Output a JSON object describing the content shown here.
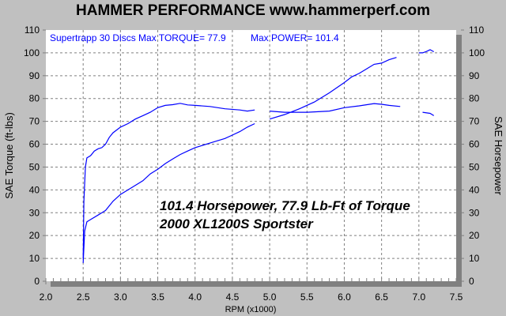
{
  "chart_data": {
    "type": "line",
    "title": "HAMMER PERFORMANCE www.hammerperf.com",
    "xlabel": "RPM (x1000)",
    "ylabel": "SAE Torque (ft-lbs)",
    "ylabel_right": "SAE Horsepower",
    "xlim": [
      2.0,
      7.5
    ],
    "ylim": [
      0,
      110
    ],
    "xticks": [
      "2.0",
      "2.5",
      "3.0",
      "3.5",
      "4.0",
      "4.5",
      "5.0",
      "5.5",
      "6.0",
      "6.5",
      "7.0",
      "7.5"
    ],
    "yticks": [
      "0",
      "10",
      "20",
      "30",
      "40",
      "50",
      "60",
      "70",
      "80",
      "90",
      "100",
      "110"
    ],
    "grid": true,
    "annotations": {
      "header_left": "Supertrapp 30 Discs  Max TORQUE= 77.9",
      "header_right": "Max POWER= 101.4",
      "line1": "101.4 Horsepower, 77.9 Lb-Ft of Torque",
      "line2": "2000 XL1200S Sportster"
    },
    "colors": {
      "line": "#0000ff",
      "background": "#c0c0c0",
      "plot": "#ffffff",
      "shadow": "#808080"
    },
    "series": [
      {
        "segments": [
          {
            "x": [
              2.5,
              2.51,
              2.53,
              2.55,
              2.6,
              2.65,
              2.7,
              2.75,
              2.8,
              2.85,
              2.9,
              3.0,
              3.1,
              3.2,
              3.3,
              3.4,
              3.5,
              3.6,
              3.7,
              3.8,
              3.9,
              4.0,
              4.2,
              4.4,
              4.6,
              4.7,
              4.8
            ],
            "y": [
              10,
              35,
              50,
              54,
              55,
              57,
              58,
              58.5,
              60,
              63,
              65,
              67.5,
              69,
              71,
              72.5,
              74,
              76,
              77,
              77.3,
              77.9,
              77.2,
              77,
              76.5,
              75.5,
              75,
              74.5,
              75
            ]
          },
          {
            "x": [
              5.0,
              5.2,
              5.5,
              5.8,
              6.0,
              6.2,
              6.4,
              6.5,
              6.6,
              6.75
            ],
            "y": [
              74.5,
              74,
              74,
              74.5,
              76,
              76.8,
              77.8,
              77.5,
              77,
              76.5
            ]
          },
          {
            "x": [
              7.05,
              7.15,
              7.2
            ],
            "y": [
              74,
              73.5,
              72.5
            ]
          }
        ]
      },
      {
        "segments": [
          {
            "x": [
              2.5,
              2.52,
              2.55,
              2.6,
              2.7,
              2.8,
              2.9,
              3.0,
              3.1,
              3.2,
              3.3,
              3.4,
              3.5,
              3.6,
              3.7,
              3.8,
              3.9,
              4.0,
              4.1,
              4.2,
              4.3,
              4.4,
              4.5,
              4.6,
              4.7,
              4.8
            ],
            "y": [
              8,
              22,
              26,
              27,
              29,
              31,
              35,
              38,
              40,
              42,
              44,
              47,
              49,
              51.5,
              53.5,
              55.5,
              57,
              58.5,
              59.5,
              60.5,
              61.5,
              62.5,
              64,
              65.5,
              67.5,
              69
            ]
          },
          {
            "x": [
              5.0,
              5.2,
              5.4,
              5.6,
              5.8,
              6.0,
              6.1,
              6.2,
              6.3,
              6.4,
              6.5,
              6.6,
              6.7
            ],
            "y": [
              71,
              73,
              75.5,
              78.5,
              82.5,
              87,
              89.5,
              91,
              93,
              95,
              95.5,
              97,
              98
            ]
          },
          {
            "x": [
              7.0,
              7.05,
              7.1,
              7.15,
              7.2
            ],
            "y": [
              100,
              100,
              100.6,
              101.4,
              100.5
            ]
          }
        ]
      }
    ]
  }
}
